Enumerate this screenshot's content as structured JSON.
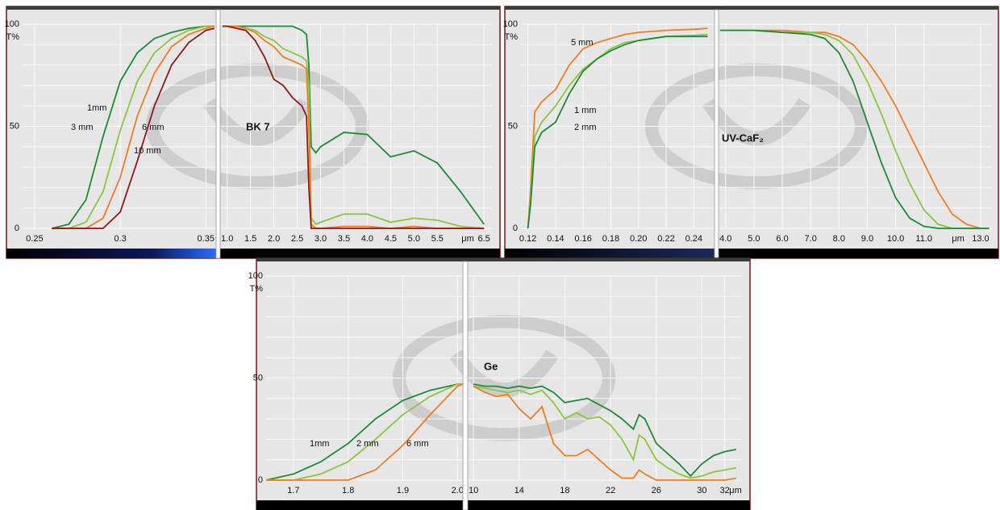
{
  "chart_data": [
    {
      "type": "line",
      "title": "BK 7",
      "y_label": "T%",
      "ylim": [
        0,
        100
      ],
      "yticks": [
        0,
        50,
        100
      ],
      "ygrid": [
        0,
        10,
        20,
        30,
        40,
        50,
        60,
        70,
        80,
        90,
        100
      ],
      "grid": true,
      "x_unit": "μm",
      "panels": [
        {
          "xlim": [
            0.243,
            0.356
          ],
          "xticks": [
            0.25,
            0.3,
            0.35
          ],
          "x": [
            0.26,
            0.27,
            0.28,
            0.29,
            0.3,
            0.31,
            0.32,
            0.33,
            0.34,
            0.35,
            0.355
          ],
          "series": [
            {
              "name": "1mm",
              "color": "#1e8a3a",
              "values": [
                0,
                2,
                14,
                45,
                72,
                86,
                93,
                96,
                98,
                99,
                99
              ]
            },
            {
              "name": "3 mm",
              "color": "#8cc63f",
              "values": [
                0,
                0,
                3,
                18,
                48,
                72,
                86,
                93,
                97,
                99,
                99
              ]
            },
            {
              "name": "6 mm",
              "color": "#f07d22",
              "values": [
                0,
                0,
                0,
                5,
                25,
                55,
                76,
                89,
                95,
                98,
                99
              ]
            },
            {
              "name": "10 mm",
              "color": "#8b1a1a",
              "values": [
                0,
                0,
                0,
                0,
                8,
                33,
                60,
                80,
                91,
                97,
                98
              ]
            }
          ]
        },
        {
          "xlim": [
            0.85,
            6.67
          ],
          "xticks": [
            {
              "value": 1,
              "label": "1.0"
            },
            1.5,
            {
              "value": 2,
              "label": "2.0"
            },
            2.5,
            {
              "value": 3,
              "label": "3.0"
            },
            3.5,
            {
              "value": 4,
              "label": "4.0"
            },
            4.5,
            {
              "value": 5,
              "label": "5.0"
            },
            5.5,
            6.5
          ],
          "x": [
            0.9,
            1.0,
            1.2,
            1.4,
            1.6,
            1.8,
            2.0,
            2.2,
            2.4,
            2.6,
            2.7,
            2.75,
            2.8,
            2.9,
            3.0,
            3.5,
            4.0,
            4.5,
            5.0,
            5.5,
            6.0,
            6.5
          ],
          "series": [
            {
              "color": "#1e8a3a",
              "values": [
                99,
                99,
                99,
                99,
                99,
                99,
                99,
                99,
                99,
                97,
                95,
                80,
                40,
                37,
                40,
                47,
                46,
                35,
                38,
                32,
                18,
                2
              ]
            },
            {
              "color": "#8cc63f",
              "values": [
                99,
                99,
                99,
                98,
                97,
                94,
                92,
                88,
                86,
                84,
                82,
                70,
                5,
                2,
                3,
                7,
                7,
                3,
                5,
                4,
                1,
                0
              ]
            },
            {
              "color": "#f07d22",
              "values": [
                99,
                99,
                99,
                98,
                96,
                92,
                89,
                84,
                82,
                80,
                78,
                50,
                2,
                0,
                0,
                1,
                1,
                0,
                1,
                0,
                0,
                0
              ]
            },
            {
              "color": "#8b1a1a",
              "values": [
                99,
                99,
                98,
                97,
                92,
                84,
                73,
                70,
                64,
                60,
                55,
                20,
                0,
                0,
                0,
                0,
                0,
                0,
                0,
                0,
                0,
                0
              ]
            }
          ]
        }
      ]
    },
    {
      "type": "line",
      "title": "UV-CaF₂",
      "y_label": "T%",
      "ylim": [
        0,
        100
      ],
      "yticks": [
        0,
        50,
        100
      ],
      "ygrid": [
        0,
        10,
        20,
        30,
        40,
        50,
        60,
        70,
        80,
        90,
        100
      ],
      "grid": true,
      "x_unit": "μm",
      "panels": [
        {
          "xlim": [
            0.115,
            0.255
          ],
          "xticks": [
            0.12,
            0.14,
            0.16,
            0.18,
            {
              "value": 0.2,
              "label": "0.20"
            },
            0.22,
            0.24
          ],
          "x": [
            0.12,
            0.122,
            0.125,
            0.13,
            0.14,
            0.15,
            0.16,
            0.17,
            0.18,
            0.19,
            0.2,
            0.22,
            0.24,
            0.25
          ],
          "series": [
            {
              "name": "5 mm",
              "color": "#f07d22",
              "values": [
                0,
                20,
                57,
                62,
                68,
                80,
                88,
                91,
                93,
                95,
                96,
                97,
                97.5,
                98
              ]
            },
            {
              "name": "1 mm",
              "color": "#8cc63f",
              "values": [
                0,
                15,
                45,
                52,
                60,
                70,
                78,
                83,
                88,
                91,
                92,
                94,
                94.5,
                95
              ]
            },
            {
              "name": "2 mm",
              "color": "#1e8a3a",
              "values": [
                0,
                12,
                40,
                47,
                52,
                66,
                77,
                83,
                87,
                90,
                92,
                94,
                94,
                94
              ]
            }
          ]
        },
        {
          "xlim": [
            3.75,
            13.4
          ],
          "xticks": [
            {
              "value": 4,
              "label": "4.0"
            },
            {
              "value": 5,
              "label": "5.0"
            },
            {
              "value": 6,
              "label": "6.0"
            },
            {
              "value": 7,
              "label": "7.0"
            },
            {
              "value": 8,
              "label": "8.0"
            },
            {
              "value": 9,
              "label": "9.0"
            },
            {
              "value": 10,
              "label": "10.0"
            },
            {
              "value": 11,
              "label": "11.0"
            },
            {
              "value": 13,
              "label": "13.0"
            }
          ],
          "x": [
            3.8,
            4,
            5,
            6,
            7,
            7.5,
            8,
            8.5,
            9,
            9.5,
            10,
            10.5,
            11,
            11.5,
            12,
            12.5,
            13,
            13.3
          ],
          "series": [
            {
              "color": "#f07d22",
              "values": [
                97,
                97,
                97,
                97,
                96,
                96,
                94,
                90,
                82,
                72,
                60,
                46,
                32,
                18,
                7,
                2,
                0,
                0
              ]
            },
            {
              "color": "#8cc63f",
              "values": [
                97,
                97,
                97,
                96,
                96,
                95,
                92,
                85,
                72,
                56,
                38,
                22,
                9,
                2,
                0,
                0,
                0,
                0
              ]
            },
            {
              "color": "#1e8a3a",
              "values": [
                97,
                97,
                97,
                96,
                95,
                93,
                86,
                72,
                52,
                32,
                15,
                5,
                1,
                0,
                0,
                0,
                0,
                0
              ]
            }
          ]
        }
      ]
    },
    {
      "type": "line",
      "title": "Ge",
      "y_label": "T%",
      "ylim": [
        0,
        100
      ],
      "yticks": [
        0,
        50,
        100
      ],
      "ygrid": [
        0,
        10,
        20,
        30,
        40,
        50,
        60,
        70,
        80,
        90,
        100
      ],
      "grid": true,
      "x_unit": "μm",
      "panels": [
        {
          "xlim": [
            1.65,
            2.01
          ],
          "xticks": [
            1.7,
            1.8,
            1.9,
            {
              "value": 2,
              "label": "2.0"
            }
          ],
          "x": [
            1.65,
            1.7,
            1.75,
            1.8,
            1.85,
            1.9,
            1.95,
            2.0,
            2.01
          ],
          "series": [
            {
              "name": "1mm",
              "color": "#1e8a3a",
              "values": [
                0,
                3,
                9,
                18,
                30,
                39,
                44,
                47,
                47
              ]
            },
            {
              "name": "2 mm",
              "color": "#8cc63f",
              "values": [
                0,
                0,
                3,
                9,
                20,
                32,
                41,
                47,
                47
              ]
            },
            {
              "name": "6 mm",
              "color": "#f07d22",
              "values": [
                0,
                0,
                0,
                0,
                5,
                17,
                32,
                46,
                47
              ]
            }
          ]
        },
        {
          "xlim": [
            9.5,
            33.5
          ],
          "xticks": [
            10,
            14,
            18,
            22,
            26,
            30,
            32
          ],
          "x": [
            10,
            11,
            12,
            13,
            14,
            15,
            16,
            17,
            18,
            19,
            20,
            21,
            22,
            23,
            24,
            24.5,
            25,
            26,
            27,
            28,
            29,
            30,
            31,
            32,
            33
          ],
          "series": [
            {
              "color": "#1e8a3a",
              "values": [
                47,
                46,
                46,
                45,
                46,
                45,
                46,
                43,
                38,
                39,
                40,
                37,
                34,
                30,
                25,
                32,
                30,
                18,
                13,
                8,
                2,
                8,
                12,
                14,
                15
              ]
            },
            {
              "color": "#8cc63f",
              "values": [
                46,
                45,
                44,
                43,
                44,
                42,
                44,
                38,
                30,
                33,
                30,
                31,
                27,
                20,
                10,
                22,
                20,
                10,
                6,
                3,
                1,
                2,
                4,
                5,
                6
              ]
            },
            {
              "color": "#f07d22",
              "values": [
                46,
                43,
                41,
                42,
                35,
                30,
                36,
                18,
                12,
                12,
                15,
                10,
                5,
                1,
                1,
                5,
                3,
                0,
                0,
                0,
                0,
                0,
                0,
                0,
                1
              ]
            }
          ]
        }
      ]
    }
  ]
}
